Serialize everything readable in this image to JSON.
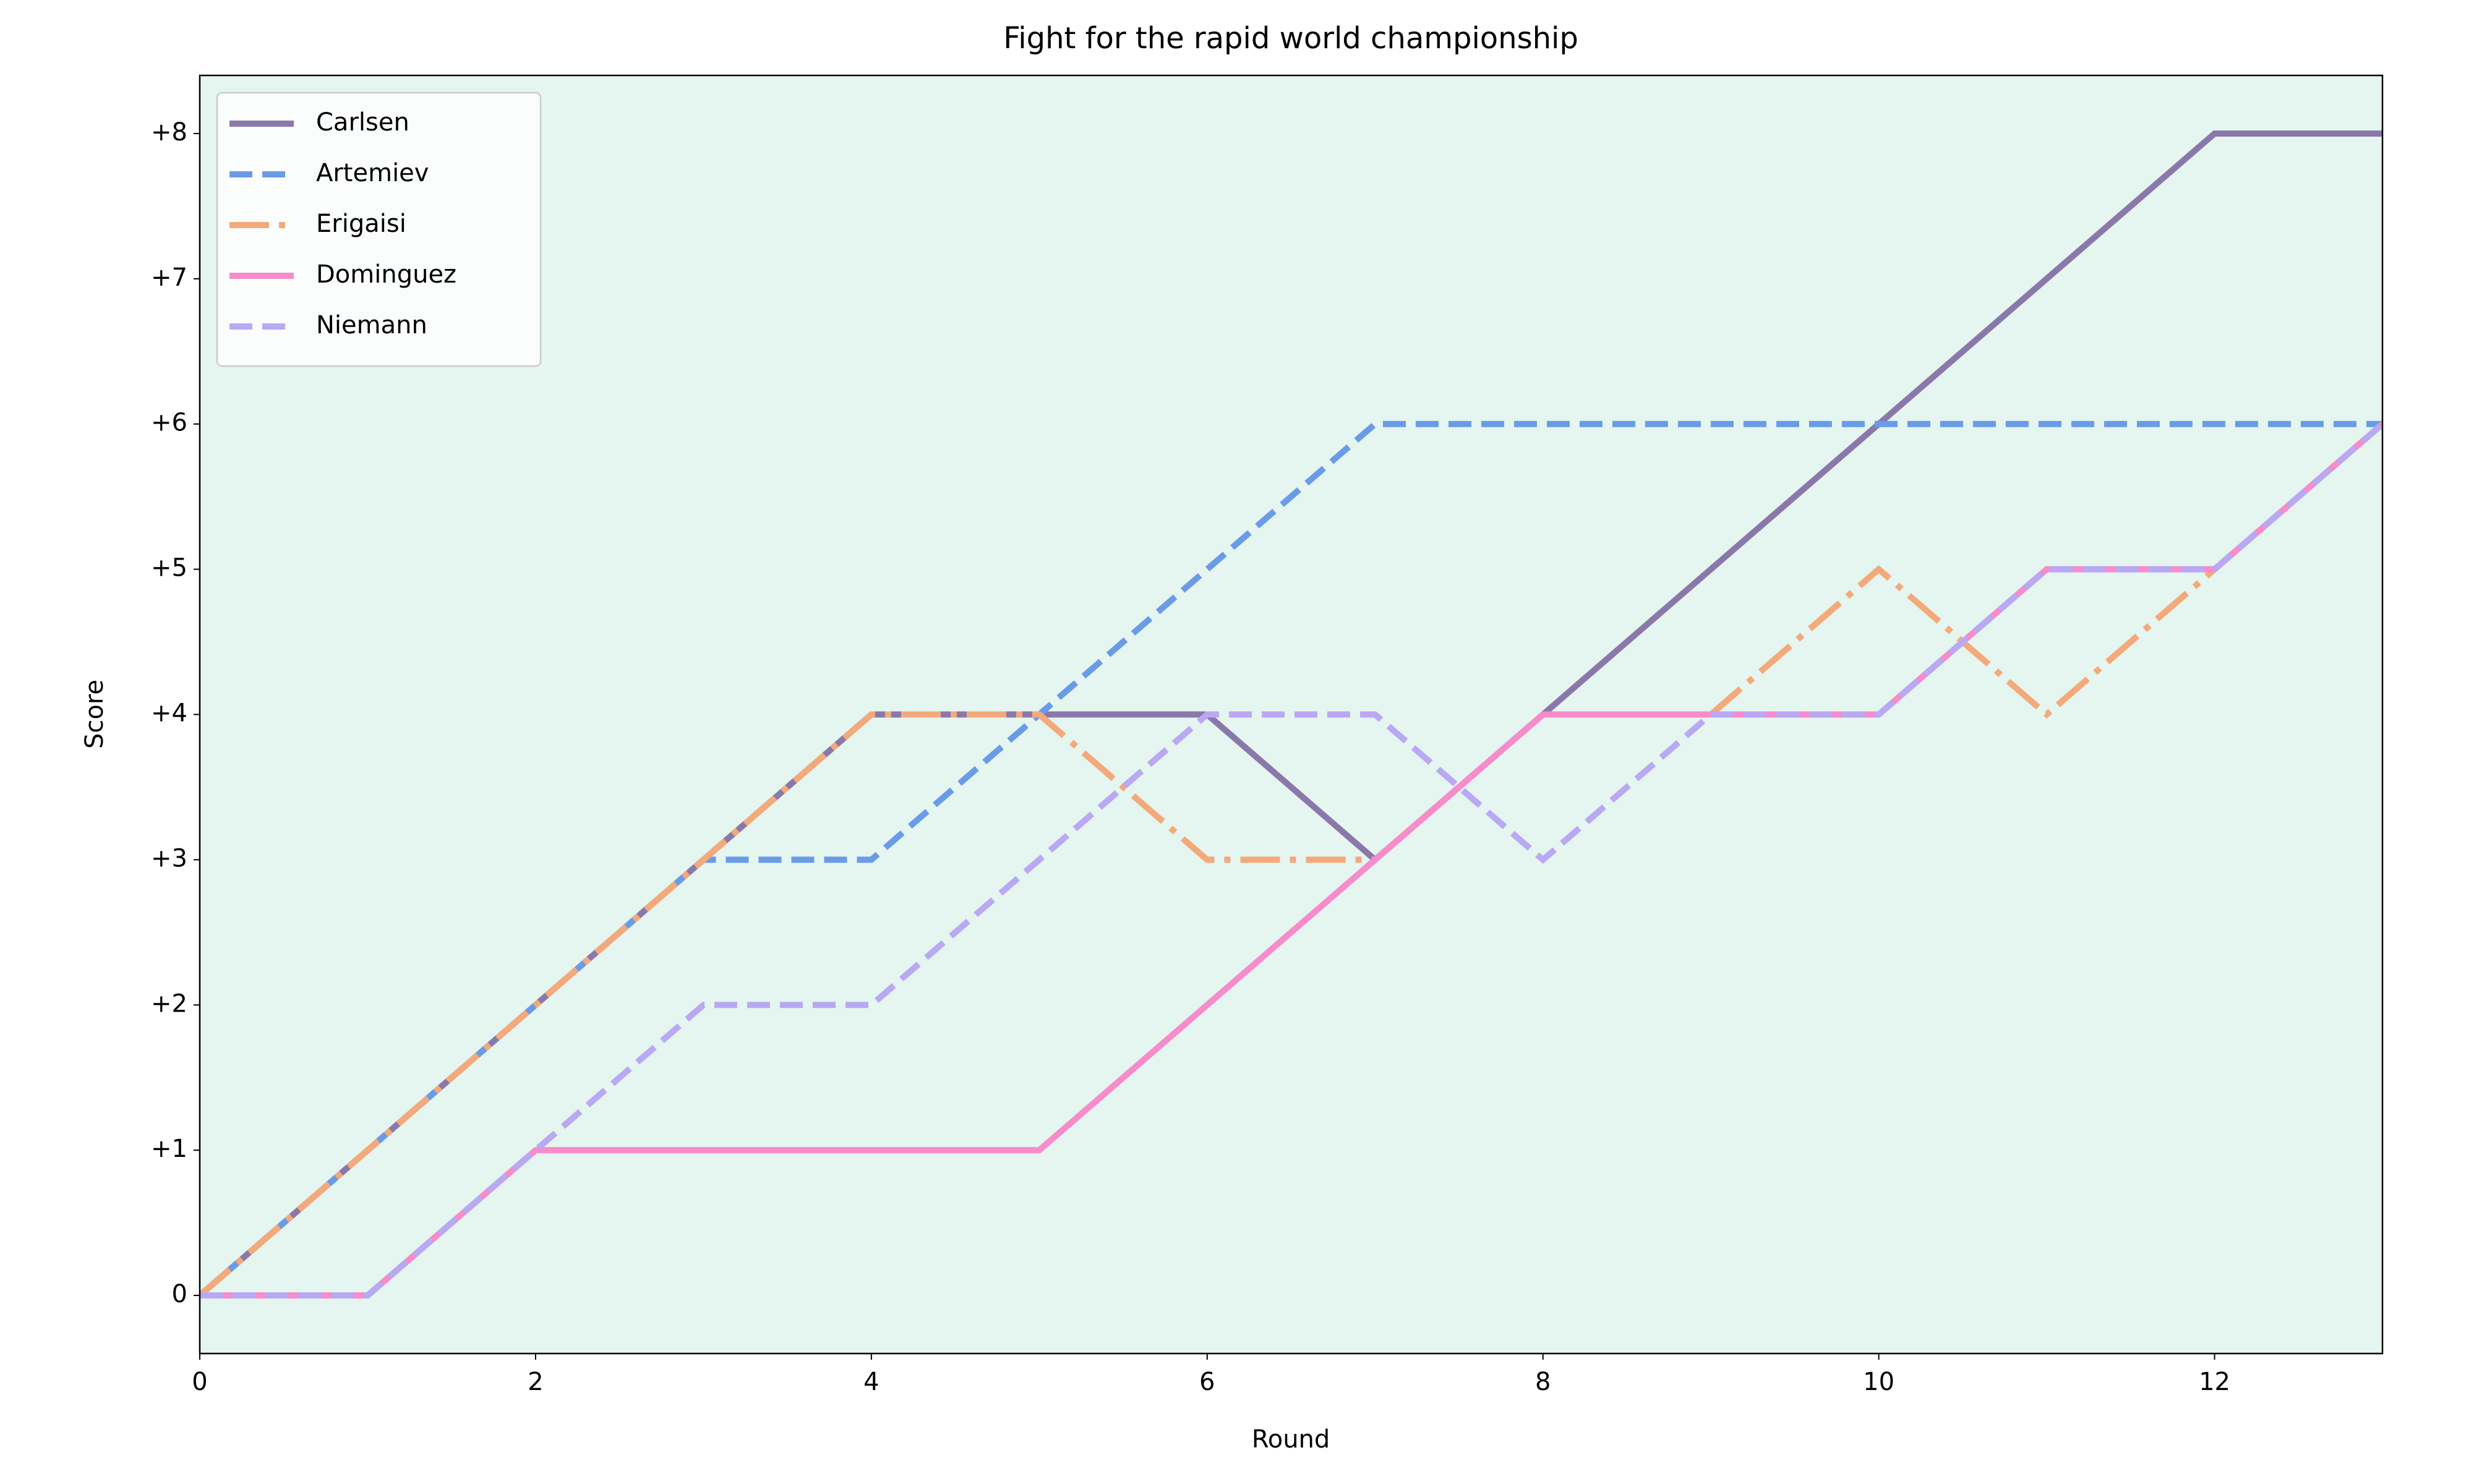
{
  "chart_data": {
    "type": "line",
    "title": "Fight for the rapid world championship",
    "x_label": "Round",
    "y_label": "Score",
    "x": [
      0,
      1,
      2,
      3,
      4,
      5,
      6,
      7,
      8,
      9,
      10,
      11,
      12,
      13
    ],
    "series": [
      {
        "name": "Carlsen",
        "color": "#8b78ab",
        "linestyle": "solid",
        "values": [
          0,
          1,
          2,
          3,
          4,
          4,
          4,
          3,
          4,
          5,
          6,
          7,
          8,
          8
        ]
      },
      {
        "name": "Artemiev",
        "color": "#6a9be8",
        "linestyle": "dashed",
        "values": [
          0,
          1,
          2,
          3,
          3,
          4,
          5,
          6,
          6,
          6,
          6,
          6,
          6,
          6
        ]
      },
      {
        "name": "Erigaisi",
        "color": "#f4a97a",
        "linestyle": "dashdot",
        "values": [
          0,
          1,
          2,
          3,
          4,
          4,
          3,
          3,
          4,
          4,
          5,
          4,
          5,
          6
        ]
      },
      {
        "name": "Dominguez",
        "color": "#f78bcb",
        "linestyle": "solid",
        "values": [
          0,
          0,
          1,
          1,
          1,
          1,
          2,
          3,
          4,
          4,
          4,
          5,
          5,
          6
        ]
      },
      {
        "name": "Niemann",
        "color": "#b9a8f4",
        "linestyle": "dashed",
        "values": [
          0,
          0,
          1,
          2,
          2,
          3,
          4,
          4,
          3,
          4,
          4,
          5,
          5,
          6
        ]
      }
    ],
    "xlim": [
      0,
      13
    ],
    "xticks": [
      0,
      2,
      4,
      6,
      8,
      10,
      12
    ],
    "ylim": [
      -0.4,
      8.4
    ],
    "yticks": [
      0,
      {
        "value": 1,
        "label": "+1"
      },
      {
        "value": 2,
        "label": "+2"
      },
      {
        "value": 3,
        "label": "+3"
      },
      {
        "value": 4,
        "label": "+4"
      },
      {
        "value": 5,
        "label": "+5"
      },
      {
        "value": 6,
        "label": "+6"
      },
      {
        "value": 7,
        "label": "+7"
      },
      {
        "value": 8,
        "label": "+8"
      }
    ],
    "background": "#e5f5ef",
    "legend": "upper left"
  }
}
